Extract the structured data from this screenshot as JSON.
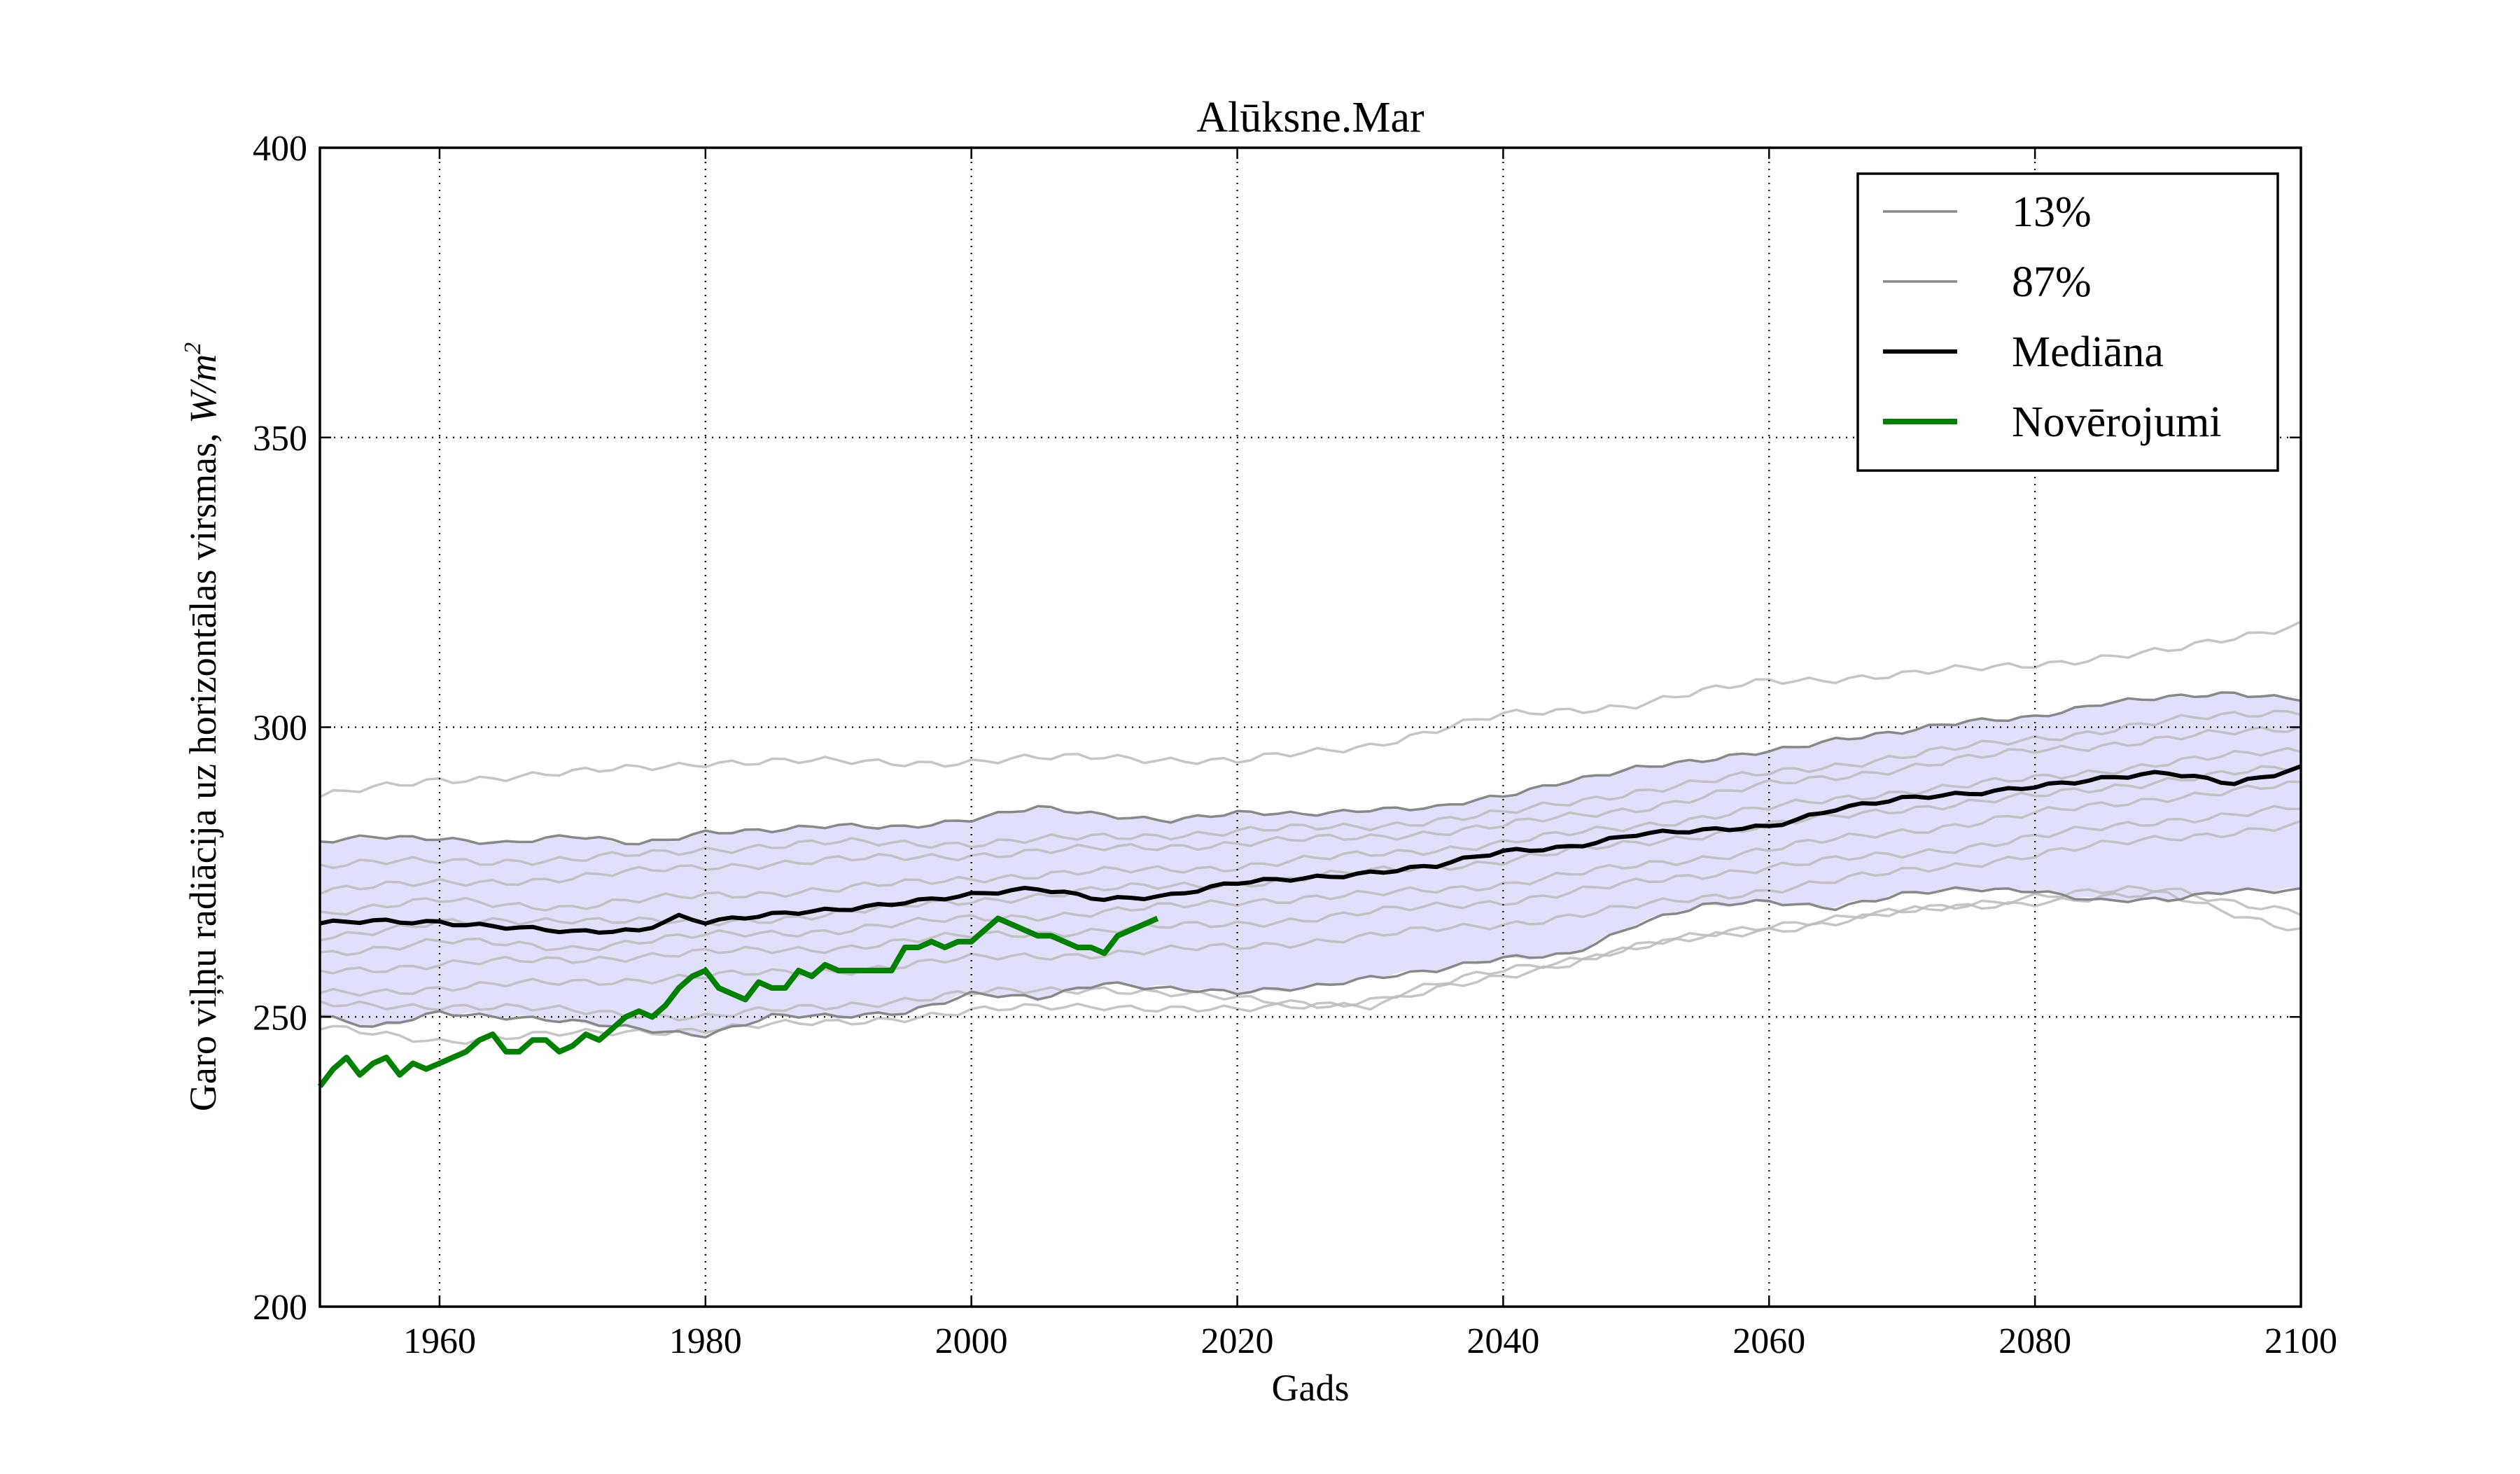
{
  "chart_data": {
    "type": "line",
    "title": "Alūksne.Mar",
    "xlabel": "Gads",
    "ylabel": "Garo viļņu radiācija uz horizontālas virsmas, W/m²",
    "ylabel_prefix": "Garo viļņu radiācija uz horizontālas virsmas, ",
    "ylabel_unit": "W/m",
    "ylabel_sup": "2",
    "xlim": [
      1951,
      2100
    ],
    "ylim": [
      200,
      400
    ],
    "xticks": [
      "1960",
      "1980",
      "2000",
      "2020",
      "2040",
      "2060",
      "2080",
      "2100"
    ],
    "yticks": [
      "200",
      "250",
      "300",
      "350",
      "400"
    ],
    "grid": true,
    "legend_position": "top-right",
    "band_color": "#e0e0fb",
    "ensemble_color": "#bbbbbb",
    "series": [
      {
        "name": "13%",
        "color": "#888888",
        "x": [
          1951,
          1955,
          1960,
          1965,
          1970,
          1975,
          1980,
          1985,
          1990,
          1995,
          2000,
          2005,
          2010,
          2015,
          2020,
          2025,
          2030,
          2035,
          2040,
          2045,
          2050,
          2055,
          2060,
          2065,
          2070,
          2075,
          2080,
          2085,
          2090,
          2095,
          2100
        ],
        "values": [
          250,
          248,
          251,
          250,
          249,
          248,
          247,
          250,
          250,
          251,
          254,
          253,
          256,
          255,
          254,
          255,
          257,
          258,
          260,
          261,
          266,
          269,
          270,
          269,
          271,
          272,
          272,
          270,
          270,
          272,
          272
        ]
      },
      {
        "name": "87%",
        "color": "#888888",
        "x": [
          1951,
          1955,
          1960,
          1965,
          1970,
          1975,
          1980,
          1985,
          1990,
          1995,
          2000,
          2005,
          2010,
          2015,
          2020,
          2025,
          2030,
          2035,
          2040,
          2045,
          2050,
          2055,
          2060,
          2065,
          2070,
          2075,
          2080,
          2085,
          2090,
          2095,
          2100
        ],
        "values": [
          280,
          281,
          281,
          280,
          281,
          280,
          282,
          282,
          283,
          283,
          284,
          286,
          285,
          284,
          285,
          285,
          286,
          286,
          288,
          291,
          293,
          294,
          296,
          298,
          299,
          301,
          302,
          304,
          305,
          306,
          305
        ]
      },
      {
        "name": "Mediāna",
        "color": "#000000",
        "x": [
          1951,
          1955,
          1960,
          1965,
          1970,
          1975,
          1978,
          1980,
          1985,
          1990,
          1995,
          2000,
          2005,
          2010,
          2015,
          2020,
          2025,
          2030,
          2035,
          2040,
          2045,
          2050,
          2055,
          2060,
          2065,
          2070,
          2075,
          2080,
          2085,
          2090,
          2095,
          2100
        ],
        "values": [
          266,
          266.5,
          266.5,
          265.5,
          264.5,
          265,
          267.5,
          266.5,
          267.5,
          268.5,
          270,
          271,
          272,
          270.5,
          271,
          273,
          274,
          275,
          276,
          278.5,
          279.5,
          281.5,
          282,
          283,
          286,
          287.5,
          288.5,
          290,
          291,
          292,
          290.5,
          293
        ]
      },
      {
        "name": "Novērojumi",
        "color": "#008000",
        "x": [
          1951,
          1952,
          1953,
          1954,
          1955,
          1956,
          1957,
          1958,
          1959,
          1960,
          1961,
          1962,
          1963,
          1964,
          1965,
          1966,
          1967,
          1968,
          1969,
          1970,
          1971,
          1972,
          1973,
          1974,
          1975,
          1976,
          1977,
          1978,
          1979,
          1980,
          1981,
          1982,
          1983,
          1984,
          1985,
          1986,
          1987,
          1988,
          1989,
          1990,
          1991,
          1992,
          1993,
          1994,
          1995,
          1996,
          1997,
          1998,
          1999,
          2000,
          2001,
          2002,
          2003,
          2004,
          2005,
          2006,
          2007,
          2008,
          2009,
          2010,
          2011,
          2012,
          2013,
          2014
        ],
        "values": [
          238,
          241,
          243,
          240,
          242,
          243,
          240,
          242,
          241,
          242,
          243,
          244,
          246,
          247,
          244,
          244,
          246,
          246,
          244,
          245,
          247,
          246,
          248,
          250,
          251,
          250,
          252,
          255,
          257,
          258,
          255,
          254,
          253,
          256,
          255,
          255,
          258,
          257,
          259,
          258,
          258,
          258,
          258,
          258,
          262,
          262,
          263,
          262,
          263,
          263,
          265,
          267,
          266,
          265,
          264,
          264,
          263,
          262,
          262,
          261,
          264,
          265,
          266,
          267
        ]
      }
    ],
    "ensemble_members": [
      {
        "x": [
          1951,
          1960,
          1970,
          1980,
          1990,
          2000,
          2010,
          2020,
          2030,
          2040,
          2050,
          2060,
          2070,
          2080,
          2090,
          2100
        ],
        "values": [
          288,
          291,
          292,
          294,
          294,
          294,
          295,
          294,
          297,
          302,
          304,
          308,
          309,
          311,
          313,
          318
        ]
      },
      {
        "x": [
          1951,
          1960,
          1970,
          1980,
          1990,
          2000,
          2010,
          2020,
          2030,
          2040,
          2050,
          2060,
          2070,
          2080,
          2090,
          2100
        ],
        "values": [
          276,
          277,
          277,
          279,
          280,
          280,
          281,
          282,
          283,
          285,
          289,
          292,
          295,
          298,
          301,
          303
        ]
      },
      {
        "x": [
          1951,
          1960,
          1970,
          1980,
          1990,
          2000,
          2010,
          2020,
          2030,
          2040,
          2050,
          2060,
          2070,
          2080,
          2090,
          2100
        ],
        "values": [
          272,
          273,
          274,
          276,
          277,
          278,
          279,
          280,
          281,
          283,
          286,
          290,
          293,
          296,
          298,
          300
        ]
      },
      {
        "x": [
          1951,
          1960,
          1970,
          1980,
          1990,
          2000,
          2010,
          2020,
          2030,
          2040,
          2050,
          2060,
          2070,
          2080,
          2090,
          2100
        ],
        "values": [
          268,
          270,
          269,
          271,
          272,
          274,
          275,
          276,
          278,
          280,
          283,
          286,
          289,
          291,
          294,
          296
        ]
      },
      {
        "x": [
          1951,
          1960,
          1970,
          1980,
          1990,
          2000,
          2010,
          2020,
          2030,
          2040,
          2050,
          2060,
          2070,
          2080,
          2090,
          2100
        ],
        "values": [
          264,
          266,
          267,
          266,
          268,
          270,
          272,
          273,
          275,
          277,
          280,
          283,
          286,
          288,
          291,
          293
        ]
      },
      {
        "x": [
          1951,
          1960,
          1970,
          1980,
          1990,
          2000,
          2010,
          2020,
          2030,
          2040,
          2050,
          2060,
          2070,
          2080,
          2090,
          2100
        ],
        "values": [
          261,
          263,
          262,
          264,
          265,
          267,
          268,
          270,
          271,
          273,
          276,
          279,
          282,
          285,
          288,
          290
        ]
      },
      {
        "x": [
          1951,
          1960,
          1970,
          1980,
          1990,
          2000,
          2010,
          2020,
          2030,
          2040,
          2050,
          2060,
          2070,
          2080,
          2090,
          2100
        ],
        "values": [
          258,
          259,
          260,
          261,
          262,
          264,
          265,
          266,
          268,
          270,
          273,
          276,
          278,
          281,
          284,
          286
        ]
      },
      {
        "x": [
          1951,
          1960,
          1970,
          1980,
          1990,
          2000,
          2010,
          2020,
          2030,
          2040,
          2050,
          2060,
          2070,
          2080,
          2090,
          2100
        ],
        "values": [
          254,
          255,
          256,
          257,
          258,
          260,
          261,
          262,
          264,
          266,
          269,
          272,
          275,
          278,
          281,
          283
        ]
      },
      {
        "x": [
          1951,
          1960,
          1970,
          1980,
          1990,
          2000,
          2010,
          2020,
          2030,
          2040,
          2050,
          2060,
          2070,
          2080,
          2090,
          2100
        ],
        "values": [
          252,
          252,
          251,
          250,
          252,
          254,
          255,
          253,
          252,
          257,
          262,
          266,
          268,
          271,
          272,
          268
        ]
      },
      {
        "x": [
          1951,
          1960,
          1970,
          1980,
          1990,
          2000,
          2010,
          2020,
          2030,
          2040,
          2050,
          2060,
          2070,
          2080,
          2090,
          2100
        ],
        "values": [
          248,
          246,
          247,
          248,
          249,
          251,
          252,
          251,
          253,
          258,
          262,
          265,
          268,
          270,
          271,
          265
        ]
      }
    ]
  }
}
